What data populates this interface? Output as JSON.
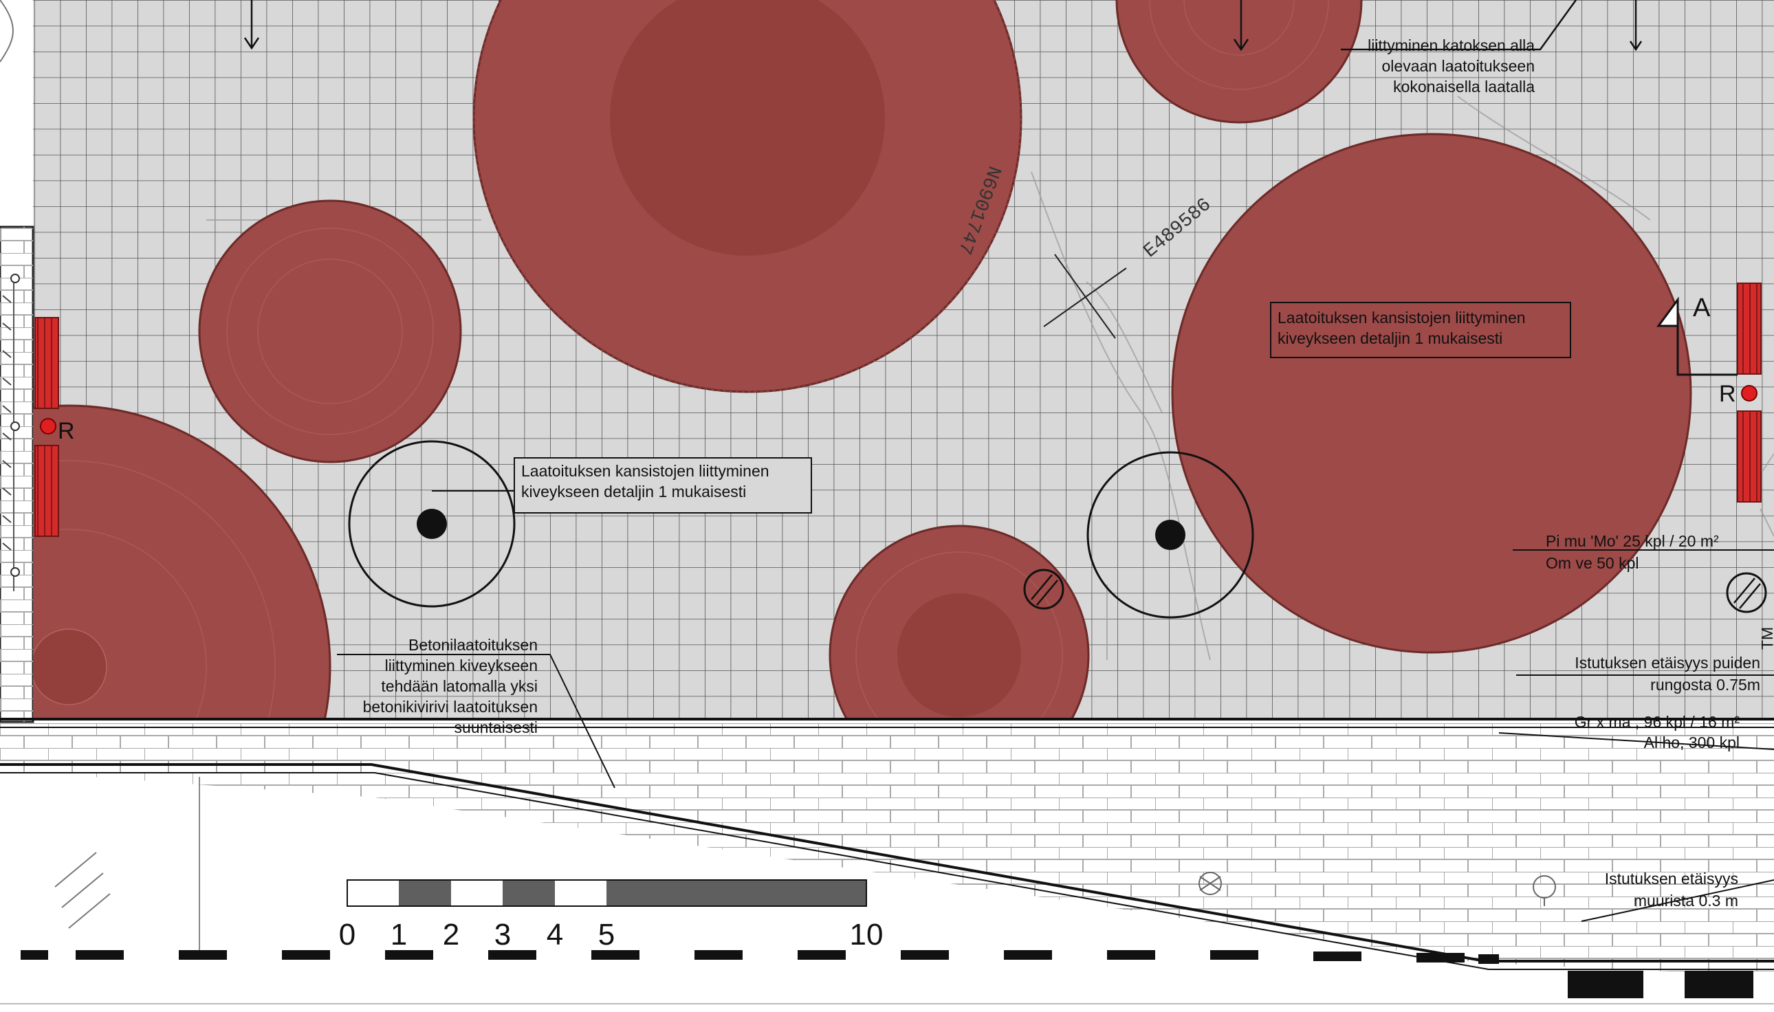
{
  "plan": {
    "annotations": {
      "canopy_joint": [
        "liittyminen katoksen alla",
        "olevaan laatoitukseen",
        "kokonaisella laatalla"
      ],
      "manhole_detail_left": [
        "Laatoituksen kansistojen liittyminen",
        "kiveykseen detaljin 1 mukaisesti"
      ],
      "manhole_detail_right": [
        "Laatoituksen kansistojen liittyminen",
        "kiveykseen detaljin 1 mukaisesti"
      ],
      "concrete_joint": [
        "Betonilaatoituksen",
        "liittyminen kiveykseen",
        "tehdään latomalla yksi",
        "betonikivirivi laatoituksen",
        "suuntaisesti"
      ],
      "planting_1": [
        "Pi mu 'Mo'  25 kpl / 20 m²",
        "Om ve 50 kpl"
      ],
      "planting_distance_trees": [
        "Istutuksen etäisyys puiden",
        "rungosta 0.75m"
      ],
      "planting_2": [
        "Gr x ma , 96 kpl / 16 m²",
        "Al ho, 300 kpl"
      ],
      "planting_distance_wall": [
        "Istutuksen etäisyys",
        "muurista 0.3 m"
      ]
    },
    "coordinates": {
      "north": "N6901747",
      "east": "E489586"
    },
    "symbols": {
      "rain_left": "R",
      "rain_right": "R",
      "section_mark": "A",
      "tm_label": "TM"
    },
    "scale_bar": {
      "labels": [
        "0",
        "1",
        "2",
        "3",
        "4",
        "5",
        "10"
      ]
    },
    "colors": {
      "paving_fill": "#d8d8d8",
      "grid_line": "#555555",
      "tree_fill": "#9d4a48",
      "tree_core": "#93403d",
      "bench_red": "#d42a2a",
      "rain_dot": "#e02020"
    }
  }
}
